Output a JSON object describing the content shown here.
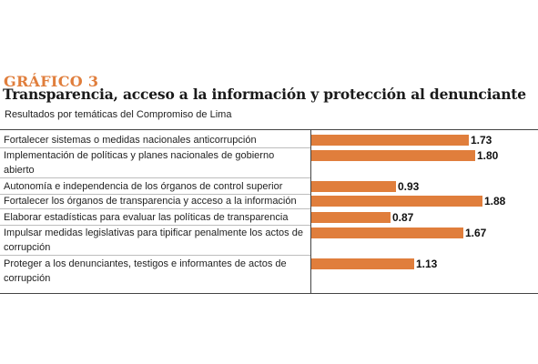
{
  "header": {
    "figure_label": "GRÁFICO 3",
    "title": "Transparencia, acceso a la información y protección al denunciante",
    "subtitle": "Resultados por temáticas del Compromiso de Lima"
  },
  "colors": {
    "accent": "#e07e3c",
    "text": "#222222"
  },
  "chart_data": {
    "type": "bar",
    "orientation": "horizontal",
    "title": "Transparencia, acceso a la información y protección al denunciante",
    "subtitle": "Resultados por temáticas del Compromiso de Lima",
    "xlim": [
      0,
      2
    ],
    "grid": false,
    "categories": [
      "Fortalecer sistemas o medidas nacionales anticorrupción",
      "Implementación de políticas y planes nacionales de gobierno abierto",
      "Autonomía e independencia de los órganos de control superior",
      "Fortalecer los órganos de transparencia y acceso a la información",
      "Elaborar estadísticas para evaluar las políticas de transparencia",
      "Impulsar medidas legislativas para tipificar penalmente los actos de corrupción",
      "Proteger a los denunciantes, testigos e informantes de actos de corrupción"
    ],
    "values": [
      1.73,
      1.8,
      0.93,
      1.88,
      0.87,
      1.67,
      1.13
    ],
    "value_labels": [
      "1.73",
      "1.80",
      "0.93",
      "1.88",
      "0.87",
      "1.67",
      "1.13"
    ]
  }
}
